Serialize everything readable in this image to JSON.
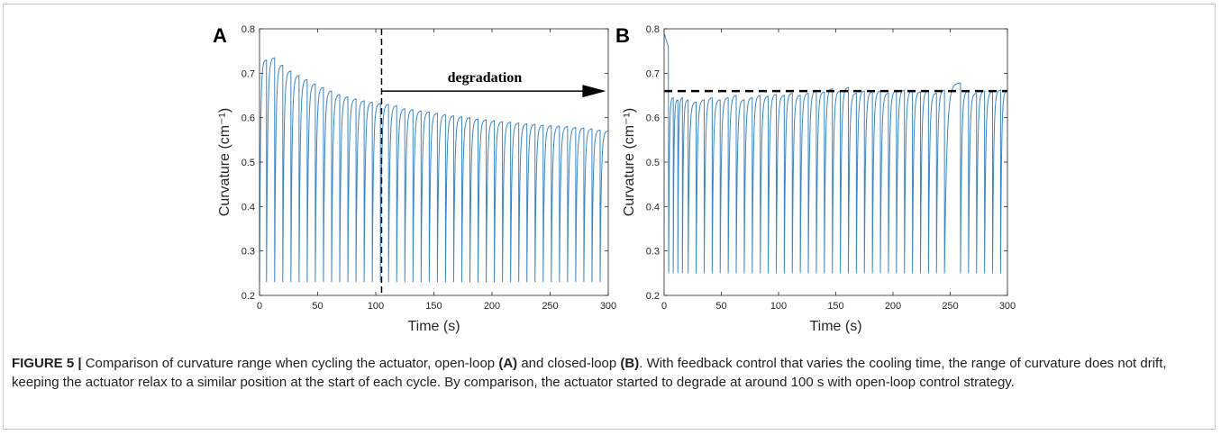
{
  "chart_data": [
    {
      "panel_label": "A",
      "type": "line",
      "xlabel": "Time (s)",
      "ylabel": "Curvature (cm⁻¹)",
      "xlim": [
        0,
        300
      ],
      "ylim": [
        0.2,
        0.8
      ],
      "xticks": [
        0,
        50,
        100,
        150,
        200,
        250,
        300
      ],
      "yticks": [
        0.2,
        0.3,
        0.4,
        0.5,
        0.6,
        0.7,
        0.8
      ],
      "line_color": "#3a86c8",
      "cycle_start_times": [
        0,
        6,
        13,
        20,
        27,
        34,
        41,
        48,
        55,
        62,
        69,
        76,
        83,
        90,
        97,
        104,
        111,
        118,
        125,
        132,
        139,
        146,
        153,
        160,
        167,
        174,
        181,
        188,
        195,
        202,
        209,
        216,
        223,
        230,
        237,
        244,
        251,
        258,
        265,
        272,
        279,
        286,
        293
      ],
      "cycle_peaks": [
        0.73,
        0.735,
        0.718,
        0.705,
        0.695,
        0.686,
        0.676,
        0.668,
        0.66,
        0.652,
        0.647,
        0.642,
        0.638,
        0.635,
        0.632,
        0.63,
        0.627,
        0.62,
        0.618,
        0.615,
        0.613,
        0.61,
        0.607,
        0.604,
        0.602,
        0.6,
        0.597,
        0.595,
        0.593,
        0.591,
        0.59,
        0.588,
        0.586,
        0.585,
        0.583,
        0.582,
        0.581,
        0.58,
        0.578,
        0.577,
        0.575,
        0.572,
        0.57
      ],
      "cycle_min": 0.23,
      "annotation_vline_x": 105,
      "annotation_text": "degradation",
      "annotation_arrow_from_x": 105,
      "annotation_arrow_to_x": 298,
      "annotation_arrow_y": 0.66
    },
    {
      "panel_label": "B",
      "type": "line",
      "xlabel": "Time (s)",
      "ylabel": "Curvature (cm⁻¹)",
      "xlim": [
        0,
        300
      ],
      "ylim": [
        0.2,
        0.8
      ],
      "xticks": [
        0,
        50,
        100,
        150,
        200,
        250,
        300
      ],
      "yticks": [
        0.2,
        0.3,
        0.4,
        0.5,
        0.6,
        0.7,
        0.8
      ],
      "line_color": "#3a86c8",
      "initial_peak": 0.79,
      "cycle_start_times": [
        4,
        8,
        12,
        16,
        21,
        28,
        35,
        42,
        49,
        56,
        63,
        70,
        77,
        84,
        91,
        98,
        105,
        112,
        119,
        126,
        133,
        140,
        147,
        154,
        161,
        168,
        175,
        182,
        189,
        196,
        203,
        210,
        217,
        224,
        231,
        238,
        245,
        259,
        266,
        273,
        280,
        287,
        294
      ],
      "cycle_peaks": [
        0.645,
        0.64,
        0.645,
        0.64,
        0.635,
        0.64,
        0.645,
        0.64,
        0.645,
        0.65,
        0.64,
        0.645,
        0.65,
        0.648,
        0.652,
        0.65,
        0.655,
        0.65,
        0.655,
        0.66,
        0.658,
        0.665,
        0.66,
        0.668,
        0.655,
        0.66,
        0.658,
        0.66,
        0.655,
        0.66,
        0.662,
        0.66,
        0.658,
        0.66,
        0.655,
        0.662,
        0.678,
        0.66,
        0.655,
        0.66,
        0.658,
        0.662,
        0.66
      ],
      "cycle_min": 0.25,
      "reference_line_y": 0.66
    }
  ],
  "caption": {
    "label": "FIGURE 5 |",
    "part1": " Comparison of curvature range when cycling the actuator, open-loop ",
    "ref_a": "(A)",
    "part2": " and closed-loop ",
    "ref_b": "(B)",
    "part3": ". With feedback control that varies the cooling time, the range of curvature does not drift, keeping the actuator relax to a similar position at the start of each cycle. By comparison, the actuator started to degrade at around 100 s with open-loop control strategy."
  }
}
